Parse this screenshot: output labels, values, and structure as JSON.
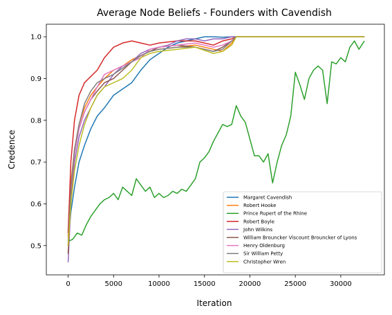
{
  "chart_data": {
    "type": "line",
    "title": "Average Node Beliefs - Founders with Cavendish",
    "xlabel": "Iteration",
    "ylabel": "Credence",
    "xlim": [
      -2400,
      34800
    ],
    "ylim": [
      0.43,
      1.03
    ],
    "x_ticks": [
      0,
      5000,
      10000,
      15000,
      20000,
      25000,
      30000
    ],
    "y_ticks": [
      0.5,
      0.6,
      0.7,
      0.8,
      0.9,
      1.0
    ],
    "x_tick_labels": [
      "0",
      "5000",
      "10000",
      "15000",
      "20000",
      "25000",
      "30000"
    ],
    "y_tick_labels": [
      "0.5",
      "0.6",
      "0.7",
      "0.8",
      "0.9",
      "1.0"
    ],
    "legend_position": "lower-right",
    "grid": false,
    "series": [
      {
        "name": "Margaret Cavendish",
        "color": "#1f77b4",
        "x": [
          0,
          300,
          700,
          1200,
          1800,
          2500,
          3200,
          4000,
          5000,
          6000,
          7000,
          8000,
          9000,
          10000,
          11000,
          12000,
          13000,
          14000,
          15000,
          16000,
          17000,
          18000,
          19000,
          20000,
          25000,
          30000,
          32600
        ],
        "y": [
          0.51,
          0.58,
          0.64,
          0.7,
          0.74,
          0.78,
          0.81,
          0.83,
          0.86,
          0.875,
          0.89,
          0.92,
          0.945,
          0.96,
          0.975,
          0.985,
          0.99,
          0.995,
          1.0,
          1.0,
          0.999,
          1.0,
          1.0,
          1.0,
          1.0,
          1.0,
          1.0
        ]
      },
      {
        "name": "Robert Hooke",
        "color": "#ff7f0e",
        "x": [
          0,
          300,
          700,
          1200,
          1800,
          2500,
          3200,
          4000,
          5000,
          6000,
          7000,
          8000,
          9000,
          10000,
          12000,
          14000,
          16000,
          17000,
          18000,
          18500,
          20000,
          25000,
          30000,
          32600
        ],
        "y": [
          0.52,
          0.65,
          0.73,
          0.79,
          0.83,
          0.86,
          0.88,
          0.9,
          0.92,
          0.93,
          0.945,
          0.955,
          0.965,
          0.97,
          0.975,
          0.98,
          0.97,
          0.965,
          0.985,
          1.0,
          1.0,
          1.0,
          1.0,
          1.0
        ]
      },
      {
        "name": "Prince Rupert of the Rhine",
        "color": "#2ca02c",
        "x": [
          0,
          500,
          1000,
          1500,
          2000,
          2500,
          3000,
          3500,
          4000,
          4500,
          5000,
          5500,
          6000,
          6500,
          7000,
          7500,
          8000,
          8500,
          9000,
          9500,
          10000,
          10500,
          11000,
          11500,
          12000,
          12500,
          13000,
          13500,
          14000,
          14500,
          15000,
          15500,
          16000,
          16500,
          17000,
          17500,
          18000,
          18500,
          19000,
          19500,
          20000,
          20500,
          21000,
          21500,
          22000,
          22500,
          23000,
          23500,
          24000,
          24500,
          25000,
          25500,
          26000,
          26500,
          27000,
          27500,
          28000,
          28500,
          29000,
          29500,
          30000,
          30500,
          31000,
          31500,
          32000,
          32600
        ],
        "y": [
          0.51,
          0.515,
          0.53,
          0.525,
          0.55,
          0.57,
          0.585,
          0.6,
          0.61,
          0.615,
          0.625,
          0.61,
          0.64,
          0.63,
          0.62,
          0.66,
          0.645,
          0.63,
          0.64,
          0.615,
          0.625,
          0.615,
          0.62,
          0.63,
          0.625,
          0.635,
          0.63,
          0.645,
          0.66,
          0.7,
          0.71,
          0.725,
          0.75,
          0.77,
          0.79,
          0.785,
          0.79,
          0.835,
          0.81,
          0.795,
          0.755,
          0.715,
          0.715,
          0.7,
          0.72,
          0.65,
          0.7,
          0.74,
          0.765,
          0.81,
          0.915,
          0.885,
          0.85,
          0.9,
          0.92,
          0.93,
          0.92,
          0.84,
          0.94,
          0.935,
          0.95,
          0.94,
          0.975,
          0.99,
          0.97,
          0.99
        ]
      },
      {
        "name": "Robert Boyle",
        "color": "#d62728",
        "x": [
          0,
          300,
          700,
          1200,
          1800,
          2500,
          3200,
          4000,
          5000,
          6000,
          7000,
          8000,
          9000,
          10000,
          12000,
          14000,
          16000,
          17000,
          18000,
          18500,
          20000,
          25000,
          30000,
          32600
        ],
        "y": [
          0.53,
          0.7,
          0.8,
          0.86,
          0.89,
          0.905,
          0.92,
          0.95,
          0.975,
          0.985,
          0.99,
          0.985,
          0.98,
          0.985,
          0.99,
          0.99,
          0.98,
          0.99,
          0.995,
          1.0,
          1.0,
          1.0,
          1.0,
          1.0
        ]
      },
      {
        "name": "John Wilkins",
        "color": "#9467bd",
        "x": [
          0,
          300,
          700,
          1200,
          1800,
          2500,
          3200,
          4000,
          5000,
          6000,
          7000,
          8000,
          9000,
          10000,
          11000,
          12000,
          13000,
          14000,
          15000,
          16000,
          17000,
          18000,
          18500,
          20000,
          25000,
          30000,
          32600
        ],
        "y": [
          0.46,
          0.6,
          0.7,
          0.76,
          0.8,
          0.83,
          0.86,
          0.88,
          0.91,
          0.93,
          0.94,
          0.96,
          0.97,
          0.975,
          0.98,
          0.99,
          0.995,
          0.995,
          0.99,
          0.995,
          0.995,
          1.0,
          1.0,
          1.0,
          1.0,
          1.0,
          1.0
        ]
      },
      {
        "name": "William Brouncker Viscount Brouncker of Lyons",
        "color": "#8c564b",
        "x": [
          0,
          300,
          700,
          1200,
          1800,
          2500,
          3200,
          4000,
          5000,
          6000,
          7000,
          8000,
          9000,
          10000,
          12000,
          14000,
          16000,
          17000,
          18000,
          18500,
          20000,
          25000,
          30000,
          32600
        ],
        "y": [
          0.48,
          0.62,
          0.72,
          0.78,
          0.82,
          0.85,
          0.87,
          0.89,
          0.9,
          0.92,
          0.94,
          0.955,
          0.965,
          0.975,
          0.98,
          0.975,
          0.965,
          0.975,
          0.99,
          1.0,
          1.0,
          1.0,
          1.0,
          1.0
        ]
      },
      {
        "name": "Henry Oldenburg",
        "color": "#e377c2",
        "x": [
          0,
          300,
          700,
          1200,
          1800,
          2500,
          3200,
          4000,
          5000,
          6000,
          7000,
          8000,
          9000,
          10000,
          12000,
          14000,
          16000,
          17000,
          18000,
          18500,
          20000,
          25000,
          30000,
          32600
        ],
        "y": [
          0.5,
          0.63,
          0.72,
          0.78,
          0.82,
          0.85,
          0.88,
          0.91,
          0.92,
          0.93,
          0.94,
          0.95,
          0.97,
          0.975,
          0.98,
          0.985,
          0.975,
          0.98,
          0.99,
          1.0,
          1.0,
          1.0,
          1.0,
          1.0
        ]
      },
      {
        "name": "Sir William Petty",
        "color": "#7f7f7f",
        "x": [
          0,
          300,
          700,
          1200,
          1800,
          2500,
          3200,
          4000,
          5000,
          6000,
          7000,
          8000,
          9000,
          10000,
          12000,
          14000,
          16000,
          17000,
          18000,
          18500,
          20000,
          25000,
          30000,
          32600
        ],
        "y": [
          0.5,
          0.64,
          0.73,
          0.79,
          0.84,
          0.87,
          0.89,
          0.9,
          0.91,
          0.925,
          0.94,
          0.955,
          0.965,
          0.97,
          0.975,
          0.975,
          0.965,
          0.97,
          0.99,
          1.0,
          1.0,
          1.0,
          1.0,
          1.0
        ]
      },
      {
        "name": "Christopher Wren",
        "color": "#bcbd22",
        "x": [
          0,
          300,
          700,
          1200,
          1800,
          2500,
          3200,
          4000,
          5000,
          6000,
          7000,
          8000,
          9000,
          10000,
          12000,
          14000,
          16000,
          17000,
          18000,
          18500,
          20000,
          25000,
          30000,
          32600
        ],
        "y": [
          0.5,
          0.6,
          0.68,
          0.74,
          0.79,
          0.83,
          0.86,
          0.88,
          0.89,
          0.9,
          0.92,
          0.95,
          0.96,
          0.965,
          0.97,
          0.975,
          0.96,
          0.965,
          0.98,
          1.0,
          1.0,
          1.0,
          1.0,
          1.0
        ]
      }
    ]
  }
}
